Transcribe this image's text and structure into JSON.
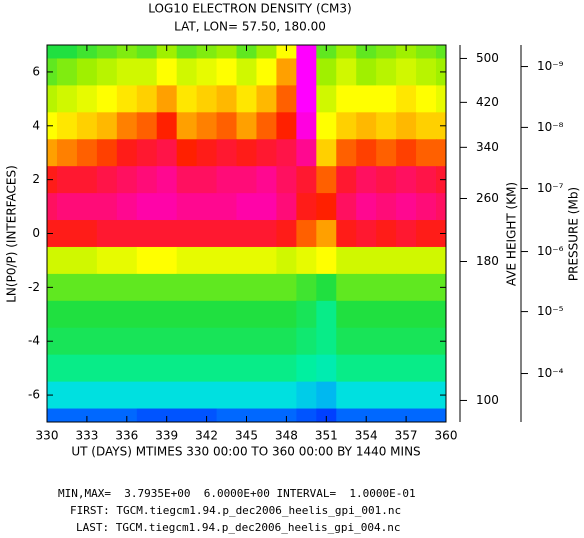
{
  "chart_data": {
    "type": "contour",
    "title": "LOG10 ELECTRON DENSITY (CM3)",
    "subtitle": "LAT, LON= 57.50,   180.00",
    "x_label": "UT (DAYS) MTIMES 330 00:00 TO 360 00:00 BY 1440 MINS",
    "y_label": "LN(P0/P) (INTERFACES)",
    "height_label": "AVE HEIGHT (KM)",
    "pressure_label": "PRESSURE (Mb)",
    "xlim": [
      330,
      360
    ],
    "xticks": [
      330,
      333,
      336,
      339,
      342,
      345,
      348,
      351,
      354,
      357,
      360
    ],
    "ylim": [
      -7,
      7
    ],
    "yticks": [
      -6,
      -4,
      -2,
      0,
      2,
      4,
      6
    ],
    "height_ticks": [
      {
        "value": 6.5,
        "label": "500"
      },
      {
        "value": 4.87,
        "label": "420"
      },
      {
        "value": 3.2,
        "label": "340"
      },
      {
        "value": 1.3,
        "label": "260"
      },
      {
        "value": -1.04,
        "label": "180"
      },
      {
        "value": -6.2,
        "label": "100"
      }
    ],
    "pressure_ticks": [
      {
        "value": 6.2,
        "label": "10⁻⁹"
      },
      {
        "value": 3.94,
        "label": "10⁻⁸"
      },
      {
        "value": 1.67,
        "label": "10⁻⁷"
      },
      {
        "value": -0.67,
        "label": "10⁻⁶"
      },
      {
        "value": -2.9,
        "label": "10⁻⁵"
      },
      {
        "value": -5.2,
        "label": "10⁻⁴"
      }
    ],
    "x": [
      330,
      331.5,
      333,
      334.5,
      336,
      337.5,
      339,
      340.5,
      342,
      343.5,
      345,
      346.5,
      348,
      349.5,
      351,
      352.5,
      354,
      355.5,
      357,
      358.5,
      360
    ],
    "y": [
      7,
      6,
      5,
      4,
      3,
      2,
      1,
      0,
      -1,
      -2,
      -3,
      -4,
      -5,
      -6,
      -7
    ],
    "z": [
      [
        4.6,
        4.6,
        4.65,
        4.7,
        4.75,
        4.7,
        4.8,
        4.7,
        4.75,
        4.8,
        4.7,
        4.8,
        5.0,
        6.0,
        4.7,
        4.8,
        4.7,
        4.75,
        4.8,
        4.75,
        4.7
      ],
      [
        4.7,
        4.75,
        4.8,
        4.85,
        4.9,
        4.9,
        5.0,
        4.9,
        4.95,
        5.0,
        4.9,
        5.0,
        5.2,
        6.0,
        4.8,
        4.9,
        4.8,
        4.85,
        4.9,
        4.85,
        4.8
      ],
      [
        4.85,
        4.9,
        4.95,
        5.0,
        5.05,
        5.1,
        5.2,
        5.05,
        5.1,
        5.15,
        5.05,
        5.15,
        5.3,
        6.0,
        4.9,
        5.0,
        5.0,
        5.0,
        5.05,
        5.0,
        4.95
      ],
      [
        5.0,
        5.05,
        5.1,
        5.15,
        5.25,
        5.3,
        5.4,
        5.2,
        5.25,
        5.3,
        5.2,
        5.3,
        5.4,
        5.9,
        5.0,
        5.1,
        5.15,
        5.1,
        5.15,
        5.1,
        5.1
      ],
      [
        5.2,
        5.25,
        5.3,
        5.35,
        5.45,
        5.5,
        5.55,
        5.4,
        5.45,
        5.5,
        5.45,
        5.5,
        5.55,
        5.7,
        5.1,
        5.3,
        5.35,
        5.3,
        5.35,
        5.3,
        5.3
      ],
      [
        5.45,
        5.5,
        5.5,
        5.55,
        5.6,
        5.65,
        5.7,
        5.6,
        5.6,
        5.65,
        5.65,
        5.7,
        5.6,
        5.5,
        5.3,
        5.5,
        5.6,
        5.55,
        5.6,
        5.55,
        5.5
      ],
      [
        5.6,
        5.65,
        5.65,
        5.65,
        5.7,
        5.75,
        5.75,
        5.7,
        5.7,
        5.7,
        5.75,
        5.75,
        5.65,
        5.45,
        5.4,
        5.6,
        5.7,
        5.65,
        5.7,
        5.65,
        5.6
      ],
      [
        5.45,
        5.45,
        5.45,
        5.5,
        5.5,
        5.5,
        5.5,
        5.5,
        5.5,
        5.5,
        5.5,
        5.5,
        5.45,
        5.3,
        5.2,
        5.45,
        5.5,
        5.45,
        5.5,
        5.45,
        5.45
      ],
      [
        4.9,
        4.9,
        4.9,
        4.95,
        4.95,
        5.0,
        5.0,
        4.95,
        4.95,
        4.95,
        4.95,
        4.95,
        4.9,
        4.95,
        5.0,
        4.9,
        4.9,
        4.9,
        4.9,
        4.9,
        4.9
      ],
      [
        4.7,
        4.7,
        4.7,
        4.7,
        4.7,
        4.7,
        4.7,
        4.7,
        4.7,
        4.7,
        4.7,
        4.7,
        4.7,
        4.65,
        4.6,
        4.7,
        4.7,
        4.7,
        4.7,
        4.7,
        4.7
      ],
      [
        4.6,
        4.6,
        4.6,
        4.6,
        4.6,
        4.6,
        4.6,
        4.6,
        4.6,
        4.6,
        4.6,
        4.6,
        4.6,
        4.55,
        4.45,
        4.6,
        4.6,
        4.6,
        4.6,
        4.6,
        4.6
      ],
      [
        4.55,
        4.55,
        4.55,
        4.55,
        4.55,
        4.55,
        4.55,
        4.55,
        4.55,
        4.55,
        4.55,
        4.55,
        4.55,
        4.5,
        4.45,
        4.55,
        4.55,
        4.55,
        4.55,
        4.55,
        4.55
      ],
      [
        4.45,
        4.45,
        4.45,
        4.45,
        4.45,
        4.45,
        4.45,
        4.45,
        4.45,
        4.45,
        4.45,
        4.45,
        4.45,
        4.4,
        4.35,
        4.45,
        4.45,
        4.45,
        4.45,
        4.45,
        4.45
      ],
      [
        4.2,
        4.2,
        4.2,
        4.2,
        4.2,
        4.2,
        4.2,
        4.2,
        4.2,
        4.2,
        4.2,
        4.2,
        4.2,
        4.15,
        4.1,
        4.2,
        4.2,
        4.2,
        4.2,
        4.2,
        4.2
      ],
      [
        3.9,
        3.9,
        3.9,
        3.9,
        3.9,
        3.85,
        3.85,
        3.85,
        3.85,
        3.9,
        3.9,
        3.9,
        3.9,
        3.85,
        3.8,
        3.9,
        3.9,
        3.9,
        3.9,
        3.9,
        3.9
      ]
    ],
    "colorscale": [
      [
        3.8,
        "#0040ff"
      ],
      [
        4.0,
        "#0090ff"
      ],
      [
        4.2,
        "#00e0e0"
      ],
      [
        4.4,
        "#00f0a0"
      ],
      [
        4.6,
        "#20e040"
      ],
      [
        4.8,
        "#a0f000"
      ],
      [
        5.0,
        "#ffff00"
      ],
      [
        5.2,
        "#ffa000"
      ],
      [
        5.4,
        "#ff2000"
      ],
      [
        5.6,
        "#ff1060"
      ],
      [
        5.8,
        "#ff00c0"
      ],
      [
        6.0,
        "#ff00ff"
      ]
    ],
    "footer": [
      "MIN,MAX=  3.7935E+00  6.0000E+00 INTERVAL=  1.0000E-01",
      "FIRST: TGCM.tiegcm1.94.p_dec2006_heelis_gpi_001.nc",
      "LAST: TGCM.tiegcm1.94.p_dec2006_heelis_gpi_004.nc"
    ]
  }
}
